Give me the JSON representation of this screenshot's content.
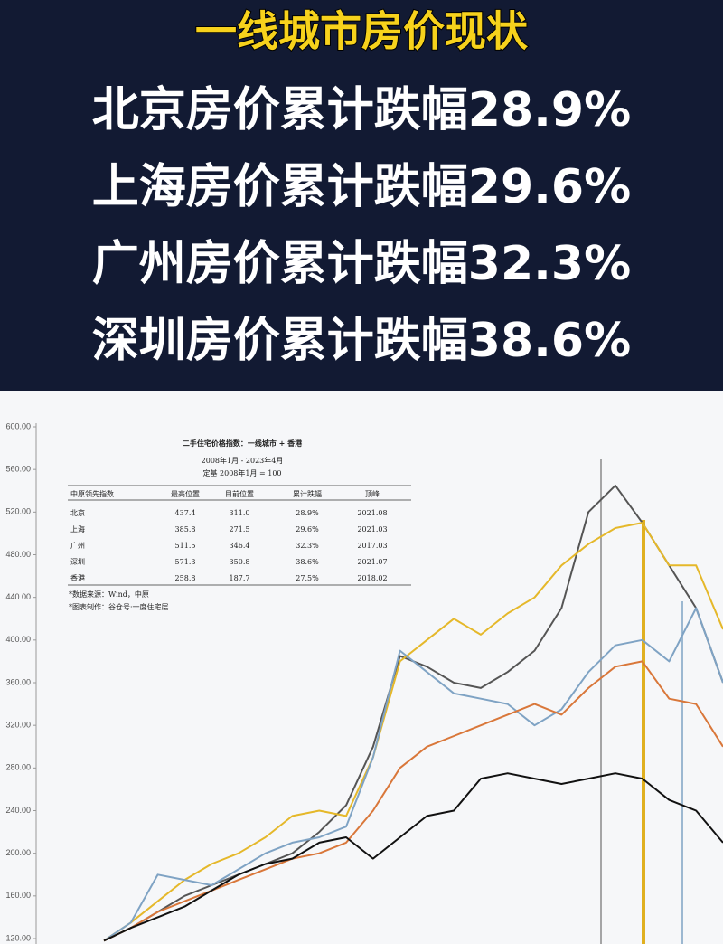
{
  "header": {
    "title": "一线城市房价现状",
    "lines": [
      "北京房价累计跌幅28.9%",
      "上海房价累计跌幅29.6%",
      "广州房价累计跌幅32.3%",
      "深圳房价累计跌幅38.6%"
    ]
  },
  "inset_table": {
    "title": "二手住宅价格指数：一线城市 + 香港",
    "subtitle": [
      "2008年1月 - 2023年4月",
      "定基 2008年1月 = 100"
    ],
    "columns": [
      "中原领先指数",
      "最高位置",
      "目前位置",
      "累计跌幅",
      "顶峰"
    ],
    "rows": [
      [
        "北京",
        "437.4",
        "311.0",
        "28.9%",
        "2021.08"
      ],
      [
        "上海",
        "385.8",
        "271.5",
        "29.6%",
        "2021.03"
      ],
      [
        "广州",
        "511.5",
        "346.4",
        "32.3%",
        "2017.03"
      ],
      [
        "深圳",
        "571.3",
        "350.8",
        "38.6%",
        "2021.07"
      ],
      [
        "香港",
        "258.8",
        "187.7",
        "27.5%",
        "2018.02"
      ]
    ],
    "notes": [
      "*数据来源：Wind，中原",
      "*图表制作：谷仓号·一度住宅层"
    ]
  },
  "chart_data": {
    "type": "line",
    "ylim": [
      120,
      600
    ],
    "yticks": [
      {
        "value": 120,
        "label": "120.00"
      },
      {
        "value": 160,
        "label": "160.00"
      },
      {
        "value": 200,
        "label": "200.00"
      },
      {
        "value": 240,
        "label": "240.00"
      },
      {
        "value": 280,
        "label": "280.00"
      },
      {
        "value": 320,
        "label": "320.00"
      },
      {
        "value": 360,
        "label": "360.00"
      },
      {
        "value": 400,
        "label": "400.00"
      },
      {
        "value": 440,
        "label": "440.00"
      },
      {
        "value": 480,
        "label": "480.00"
      },
      {
        "value": 520,
        "label": "520.00"
      },
      {
        "value": 560,
        "label": "560.00"
      },
      {
        "value": 600,
        "label": "600.00"
      }
    ],
    "series": [
      {
        "color": "#555555",
        "values": [
          118,
          130,
          145,
          160,
          170,
          180,
          190,
          200,
          220,
          245,
          300,
          385,
          375,
          360,
          355,
          370,
          390,
          430,
          520,
          545,
          510,
          470,
          430,
          360
        ]
      },
      {
        "color": "#e5b82a",
        "values": [
          118,
          135,
          155,
          175,
          190,
          200,
          215,
          235,
          240,
          235,
          290,
          380,
          400,
          420,
          405,
          425,
          440,
          470,
          490,
          505,
          510,
          470,
          470,
          410
        ]
      },
      {
        "color": "#7fa3c4",
        "values": [
          118,
          135,
          180,
          175,
          170,
          185,
          200,
          210,
          215,
          225,
          290,
          390,
          370,
          350,
          345,
          340,
          320,
          335,
          370,
          395,
          400,
          380,
          430,
          360
        ]
      },
      {
        "color": "#d9773a",
        "values": [
          118,
          130,
          145,
          155,
          165,
          175,
          185,
          195,
          200,
          210,
          240,
          280,
          300,
          310,
          320,
          330,
          340,
          330,
          355,
          375,
          380,
          345,
          340,
          300
        ]
      },
      {
        "color": "#111111",
        "values": [
          118,
          130,
          140,
          150,
          165,
          180,
          190,
          195,
          210,
          215,
          195,
          215,
          235,
          240,
          270,
          275,
          270,
          265,
          270,
          275,
          270,
          250,
          240,
          210
        ]
      }
    ]
  }
}
